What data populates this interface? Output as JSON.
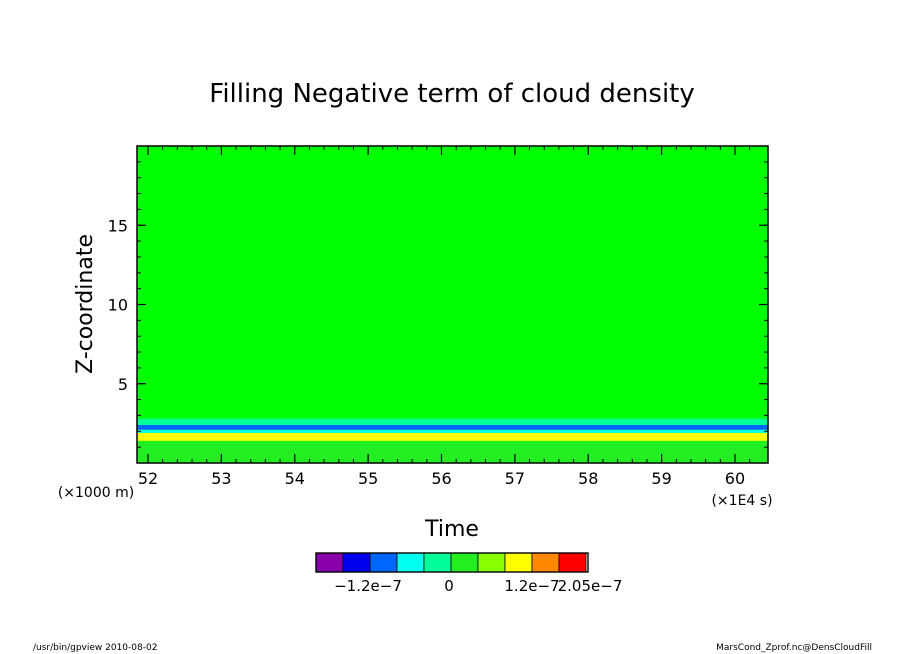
{
  "chart_data": {
    "type": "heatmap",
    "title": "Filling Negative term of cloud density",
    "xlabel": "Time",
    "ylabel": "Z-coordinate",
    "x_unit": "(×1E4 s)",
    "y_unit": "(×1000 m)",
    "xlim": [
      51.85,
      60.45
    ],
    "ylim": [
      0,
      20
    ],
    "x_ticks": [
      "52",
      "53",
      "54",
      "55",
      "56",
      "57",
      "58",
      "59",
      "60"
    ],
    "x_tick_values": [
      52,
      53,
      54,
      55,
      56,
      57,
      58,
      59,
      60
    ],
    "y_ticks": [
      "5",
      "10",
      "15"
    ],
    "y_tick_values": [
      5,
      10,
      15
    ],
    "background_level_color": "#00ff00",
    "bands": [
      {
        "z_bottom": 0.0,
        "z_top": 1.4,
        "color": "#22ee22"
      },
      {
        "z_bottom": 1.4,
        "z_top": 1.9,
        "color": "#ffff00"
      },
      {
        "z_bottom": 1.9,
        "z_top": 2.1,
        "color": "#00ffee"
      },
      {
        "z_bottom": 2.1,
        "z_top": 2.4,
        "color": "#0066ff"
      },
      {
        "z_bottom": 2.4,
        "z_top": 2.8,
        "color": "#00ff99"
      }
    ],
    "colorbar": {
      "colors": [
        "#8800aa",
        "#0000ee",
        "#0066ff",
        "#00ffee",
        "#00ff99",
        "#22ee22",
        "#88ff00",
        "#ffff00",
        "#ff8800",
        "#ff0000"
      ],
      "tick_labels": [
        "−1.2e−7",
        "0",
        "1.2e−7",
        "2.05e−7"
      ]
    }
  },
  "footer": {
    "left": "/usr/bin/gpview   2010-08-02",
    "right": "MarsCond_Zprof.nc@DensCloudFill"
  }
}
